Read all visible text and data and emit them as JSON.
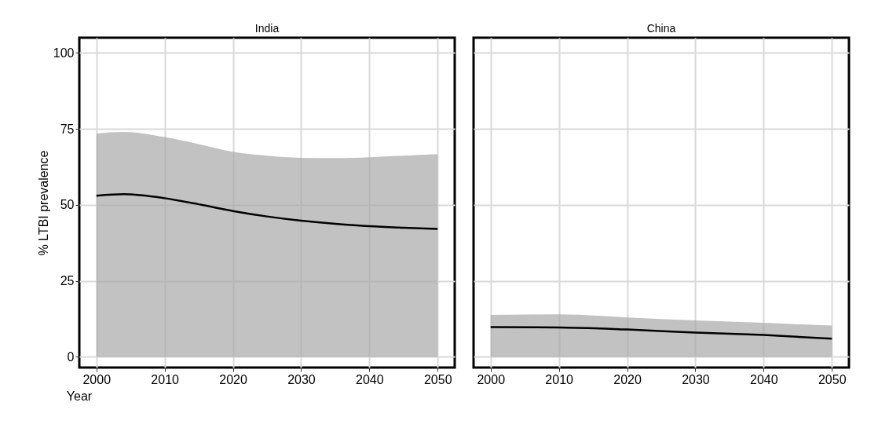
{
  "chart_data": [
    {
      "type": "area",
      "title": "India",
      "ylabel": "% LTBI prevalence",
      "xlabel": "Year",
      "x": [
        2000,
        2004,
        2010,
        2015,
        2020,
        2025,
        2030,
        2035,
        2040,
        2045,
        2050
      ],
      "xlim": [
        1997.5,
        2052.5
      ],
      "xticks": [
        2000,
        2010,
        2020,
        2030,
        2040,
        2050
      ],
      "ylim": [
        -3.5,
        105
      ],
      "yticks": [
        0,
        25,
        50,
        75,
        100
      ],
      "grid": true,
      "series": [
        {
          "type": "line",
          "color": "#000000",
          "values": [
            53,
            53.5,
            52.2,
            50.2,
            48,
            46.2,
            44.8,
            43.8,
            43,
            42.5,
            42.1
          ],
          "lower": [
            0,
            0,
            0,
            0,
            0,
            0,
            0,
            0,
            0,
            0,
            0
          ],
          "upper": [
            73.5,
            74,
            72.3,
            70,
            67.5,
            66.2,
            65.5,
            65.4,
            65.7,
            66.2,
            66.7
          ]
        }
      ]
    },
    {
      "type": "area",
      "title": "China",
      "x": [
        2000,
        2010,
        2020,
        2030,
        2040,
        2050
      ],
      "xlim": [
        1997.5,
        2052.5
      ],
      "xticks": [
        2000,
        2010,
        2020,
        2030,
        2040,
        2050
      ],
      "ylim": [
        -3.5,
        105
      ],
      "yticks": [
        0,
        25,
        50,
        75,
        100
      ],
      "grid": true,
      "tick_labels": "x",
      "series": [
        {
          "type": "line",
          "color": "#000000",
          "values": [
            9.8,
            9.7,
            9,
            8,
            7.2,
            6
          ],
          "lower": [
            0,
            0,
            0,
            0,
            0,
            0
          ],
          "upper": [
            13.8,
            14,
            13,
            12,
            11.2,
            10.3
          ]
        }
      ]
    }
  ]
}
